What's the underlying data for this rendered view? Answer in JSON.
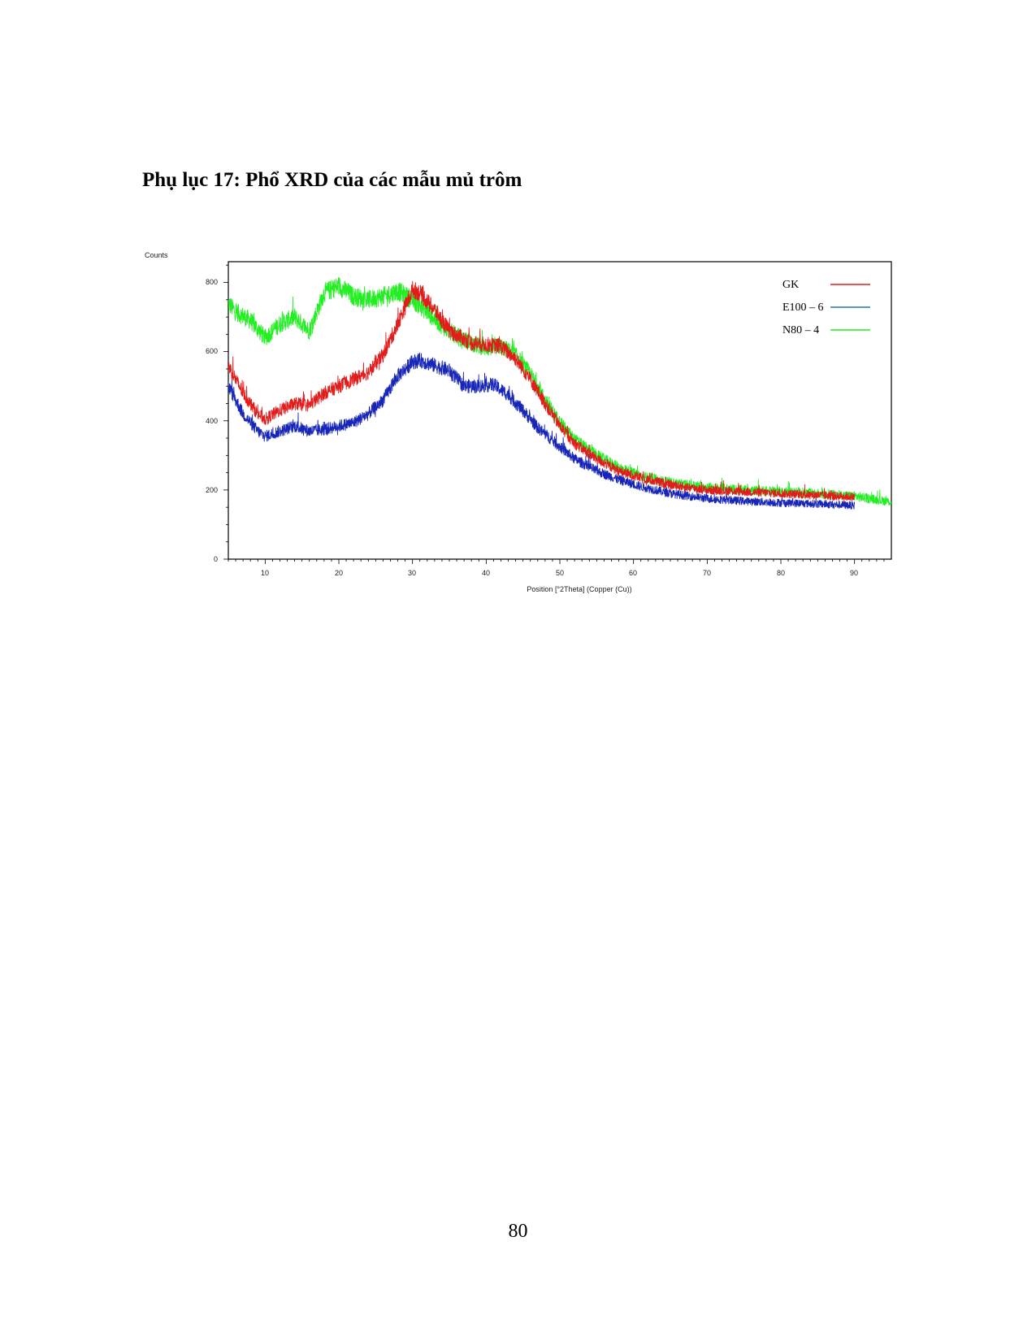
{
  "document": {
    "heading": "Phụ lục 17: Phổ XRD của các mẫu mủ trôm",
    "page_number": "80"
  },
  "chart_data": {
    "type": "line",
    "title": "",
    "xlabel": "Position [°2Theta] (Copper (Cu))",
    "ylabel": "Counts",
    "xlim": [
      5,
      95
    ],
    "ylim": [
      0,
      860
    ],
    "x_ticks": [
      "10",
      "20",
      "30",
      "40",
      "50",
      "60",
      "70",
      "80",
      "90"
    ],
    "y_ticks": [
      "0",
      "200",
      "400",
      "600",
      "800"
    ],
    "legend_position": "top-right",
    "series": [
      {
        "name": "GK",
        "color": "#e21b1b",
        "noise": 18,
        "x": [
          5,
          7,
          9,
          10,
          12,
          14,
          16,
          18,
          20,
          22,
          24,
          26,
          28,
          30,
          31,
          33,
          35,
          38,
          40,
          42,
          44,
          46,
          48,
          50,
          52,
          55,
          58,
          61,
          65,
          70,
          75,
          80,
          85,
          90
        ],
        "y": [
          560,
          480,
          420,
          405,
          430,
          450,
          445,
          480,
          500,
          520,
          540,
          590,
          680,
          780,
          770,
          720,
          660,
          625,
          620,
          615,
          580,
          520,
          450,
          385,
          335,
          290,
          255,
          235,
          215,
          200,
          195,
          190,
          185,
          180
        ]
      },
      {
        "name": "E100 – 6",
        "color": "#1726b8",
        "noise": 18,
        "x": [
          5,
          7,
          9,
          10,
          12,
          14,
          16,
          18,
          20,
          22,
          24,
          26,
          28,
          30,
          31,
          33,
          35,
          37,
          39,
          41,
          43,
          45,
          47,
          50,
          52,
          55,
          58,
          61,
          65,
          70,
          75,
          80,
          85,
          90
        ],
        "y": [
          500,
          420,
          370,
          355,
          370,
          385,
          370,
          375,
          385,
          395,
          420,
          460,
          530,
          570,
          575,
          560,
          545,
          500,
          500,
          505,
          475,
          430,
          380,
          325,
          290,
          255,
          230,
          210,
          190,
          175,
          168,
          163,
          160,
          155
        ]
      },
      {
        "name": "N80 – 4",
        "color": "#22ee22",
        "noise": 20,
        "x": [
          5,
          6,
          8,
          10,
          12,
          14,
          16,
          18,
          20,
          22,
          24,
          26,
          28,
          30,
          32,
          34,
          36,
          38,
          40,
          42,
          44,
          46,
          48,
          50,
          52,
          55,
          58,
          61,
          65,
          70,
          75,
          80,
          85,
          90,
          95
        ],
        "y": [
          740,
          715,
          690,
          640,
          680,
          700,
          660,
          770,
          790,
          760,
          750,
          760,
          775,
          750,
          715,
          675,
          645,
          625,
          610,
          615,
          590,
          535,
          460,
          395,
          345,
          300,
          265,
          240,
          220,
          208,
          200,
          195,
          190,
          182,
          165
        ]
      }
    ]
  }
}
